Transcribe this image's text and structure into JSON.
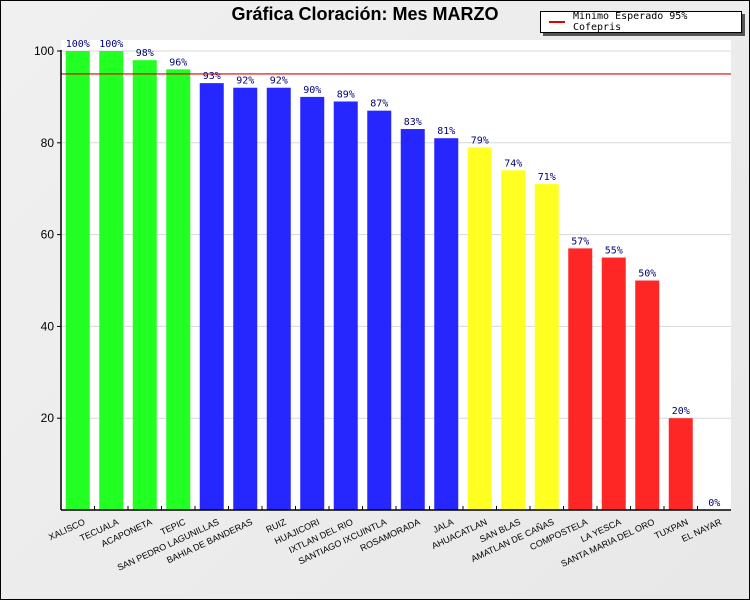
{
  "chart_data": {
    "type": "bar",
    "title": "Gráfica Cloración: Mes MARZO",
    "xlabel": "",
    "ylabel": "",
    "ylim": [
      0,
      100
    ],
    "yticks": [
      20,
      40,
      60,
      80,
      100
    ],
    "grid": true,
    "legend_position": "top-right",
    "value_suffix": "%",
    "categories": [
      "XALISCO",
      "TECUALA",
      "ACAPONETA",
      "TEPIC",
      "SAN PEDRO LAGUNILLAS",
      "BAHIA DE BANDERAS",
      "RUIZ",
      "HUAJICORI",
      "IXTLAN DEL RIO",
      "SANTIAGO IXCUINTLA",
      "ROSAMORADA",
      "JALA",
      "AHUACATLAN",
      "SAN BLAS",
      "AMATLAN DE CAÑAS",
      "COMPOSTELA",
      "LA YESCA",
      "SANTA MARIA DEL ORO",
      "TUXPAN",
      "EL NAYAR"
    ],
    "values": [
      100,
      100,
      98,
      96,
      93,
      92,
      92,
      90,
      89,
      87,
      83,
      81,
      79,
      74,
      71,
      57,
      55,
      50,
      20,
      0
    ],
    "bar_colors": [
      "#22ff22",
      "#22ff22",
      "#22ff22",
      "#22ff22",
      "#2626ff",
      "#2626ff",
      "#2626ff",
      "#2626ff",
      "#2626ff",
      "#2626ff",
      "#2626ff",
      "#2626ff",
      "#ffff22",
      "#ffff22",
      "#ffff22",
      "#ff2626",
      "#ff2626",
      "#ff2626",
      "#ff2626",
      "#ff2626"
    ],
    "reference_line": {
      "label": "Minimo Esperado 95% Cofepris",
      "value": 95,
      "color": "#e00000"
    }
  }
}
